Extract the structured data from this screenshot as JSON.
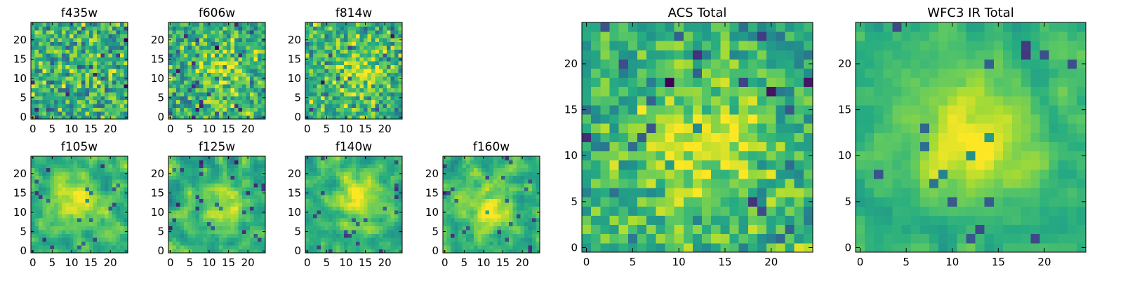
{
  "figure": {
    "background": "#ffffff"
  },
  "chart_data": [
    {
      "type": "heatmap",
      "title": "f435w",
      "xlabel": "",
      "ylabel": "",
      "xticks": [
        0,
        5,
        10,
        15,
        20
      ],
      "yticks": [
        0,
        5,
        10,
        15,
        20
      ],
      "xlim": [
        -0.5,
        24.5
      ],
      "ylim": [
        -0.5,
        24.5
      ],
      "grid_size": [
        25,
        25
      ],
      "origin": "lower",
      "colormap": "viridis",
      "seed": 435,
      "blob_center": [
        13,
        10
      ],
      "blob_strength": 0.05,
      "noise_level": 0.5,
      "smoothing": 0
    },
    {
      "type": "heatmap",
      "title": "f606w",
      "xlabel": "",
      "ylabel": "",
      "xticks": [
        0,
        5,
        10,
        15,
        20
      ],
      "yticks": [
        0,
        5,
        10,
        15,
        20
      ],
      "xlim": [
        -0.5,
        24.5
      ],
      "ylim": [
        -0.5,
        24.5
      ],
      "grid_size": [
        25,
        25
      ],
      "origin": "lower",
      "colormap": "viridis",
      "seed": 606,
      "blob_center": [
        13,
        12
      ],
      "blob_strength": 0.2,
      "noise_level": 0.45,
      "smoothing": 0
    },
    {
      "type": "heatmap",
      "title": "f814w",
      "xlabel": "",
      "ylabel": "",
      "xticks": [
        0,
        5,
        10,
        15,
        20
      ],
      "yticks": [
        0,
        5,
        10,
        15,
        20
      ],
      "xlim": [
        -0.5,
        24.5
      ],
      "ylim": [
        -0.5,
        24.5
      ],
      "grid_size": [
        25,
        25
      ],
      "origin": "lower",
      "colormap": "viridis",
      "seed": 814,
      "blob_center": [
        13,
        12
      ],
      "blob_strength": 0.25,
      "noise_level": 0.45,
      "smoothing": 0
    },
    {
      "type": "heatmap",
      "title": "f105w",
      "xlabel": "",
      "ylabel": "",
      "xticks": [
        0,
        5,
        10,
        15,
        20
      ],
      "yticks": [
        0,
        5,
        10,
        15,
        20
      ],
      "xlim": [
        -0.5,
        24.5
      ],
      "ylim": [
        -0.5,
        24.5
      ],
      "grid_size": [
        25,
        25
      ],
      "origin": "lower",
      "colormap": "viridis",
      "seed": 105,
      "blob_center": [
        12,
        12
      ],
      "blob_strength": 0.3,
      "noise_level": 0.35,
      "smoothing": 1
    },
    {
      "type": "heatmap",
      "title": "f125w",
      "xlabel": "",
      "ylabel": "",
      "xticks": [
        0,
        5,
        10,
        15,
        20
      ],
      "yticks": [
        0,
        5,
        10,
        15,
        20
      ],
      "xlim": [
        -0.5,
        24.5
      ],
      "ylim": [
        -0.5,
        24.5
      ],
      "grid_size": [
        25,
        25
      ],
      "origin": "lower",
      "colormap": "viridis",
      "seed": 125,
      "blob_center": [
        12,
        12
      ],
      "blob_strength": 0.2,
      "noise_level": 0.4,
      "smoothing": 1
    },
    {
      "type": "heatmap",
      "title": "f140w",
      "xlabel": "",
      "ylabel": "",
      "xticks": [
        0,
        5,
        10,
        15,
        20
      ],
      "yticks": [
        0,
        5,
        10,
        15,
        20
      ],
      "xlim": [
        -0.5,
        24.5
      ],
      "ylim": [
        -0.5,
        24.5
      ],
      "grid_size": [
        25,
        25
      ],
      "origin": "lower",
      "colormap": "viridis",
      "seed": 140,
      "blob_center": [
        13,
        13
      ],
      "blob_strength": 0.3,
      "noise_level": 0.35,
      "smoothing": 1
    },
    {
      "type": "heatmap",
      "title": "f160w",
      "xlabel": "",
      "ylabel": "",
      "xticks": [
        0,
        5,
        10,
        15,
        20
      ],
      "yticks": [
        0,
        5,
        10,
        15,
        20
      ],
      "xlim": [
        -0.5,
        24.5
      ],
      "ylim": [
        -0.5,
        24.5
      ],
      "grid_size": [
        25,
        25
      ],
      "origin": "lower",
      "colormap": "viridis",
      "seed": 160,
      "blob_center": [
        12,
        12
      ],
      "blob_strength": 0.3,
      "noise_level": 0.38,
      "smoothing": 1
    },
    {
      "type": "heatmap",
      "title": "ACS Total",
      "xlabel": "",
      "ylabel": "",
      "xticks": [
        0,
        5,
        10,
        15,
        20
      ],
      "yticks": [
        0,
        5,
        10,
        15,
        20
      ],
      "xlim": [
        -0.5,
        24.5
      ],
      "ylim": [
        -0.5,
        24.5
      ],
      "grid_size": [
        25,
        25
      ],
      "origin": "lower",
      "colormap": "viridis",
      "seed": 7,
      "blob_center": [
        13,
        12
      ],
      "blob_strength": 0.3,
      "noise_level": 0.38,
      "smoothing": 0
    },
    {
      "type": "heatmap",
      "title": "WFC3 IR Total",
      "xlabel": "",
      "ylabel": "",
      "xticks": [
        0,
        5,
        10,
        15,
        20
      ],
      "yticks": [
        0,
        5,
        10,
        15,
        20
      ],
      "xlim": [
        -0.5,
        24.5
      ],
      "ylim": [
        -0.5,
        24.5
      ],
      "grid_size": [
        25,
        25
      ],
      "origin": "lower",
      "colormap": "viridis",
      "seed": 31,
      "blob_center": [
        12,
        12
      ],
      "blob_strength": 0.35,
      "noise_level": 0.25,
      "smoothing": 1
    }
  ]
}
